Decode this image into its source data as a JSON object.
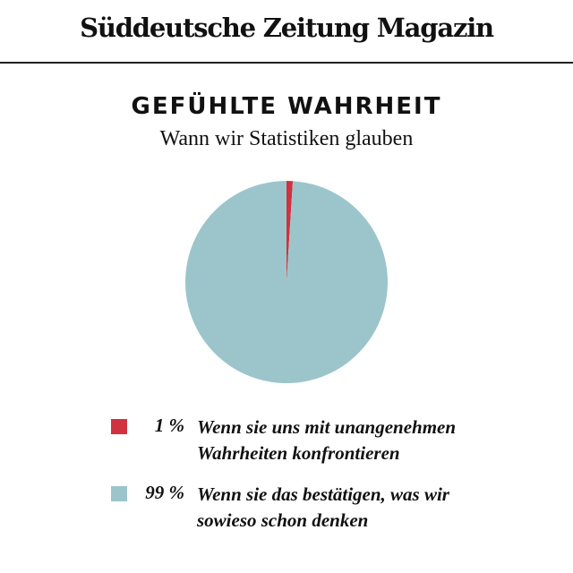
{
  "header": {
    "logo_text": "Süddeutsche Zeitung Magazin"
  },
  "chart_data": {
    "type": "pie",
    "title": "GEFÜHLTE WAHRHEIT",
    "subtitle": "Wann wir Statistiken glauben",
    "legend_position": "bottom",
    "slices": [
      {
        "value": 1,
        "pct_label": "1 %",
        "label": "Wenn sie uns mit unangenehmen Wahrheiten konfrontieren",
        "color": "#d0323f"
      },
      {
        "value": 99,
        "pct_label": "99 %",
        "label": "Wenn sie das bestätigen, was wir sowieso schon denken",
        "color": "#9cc5cb"
      }
    ]
  }
}
